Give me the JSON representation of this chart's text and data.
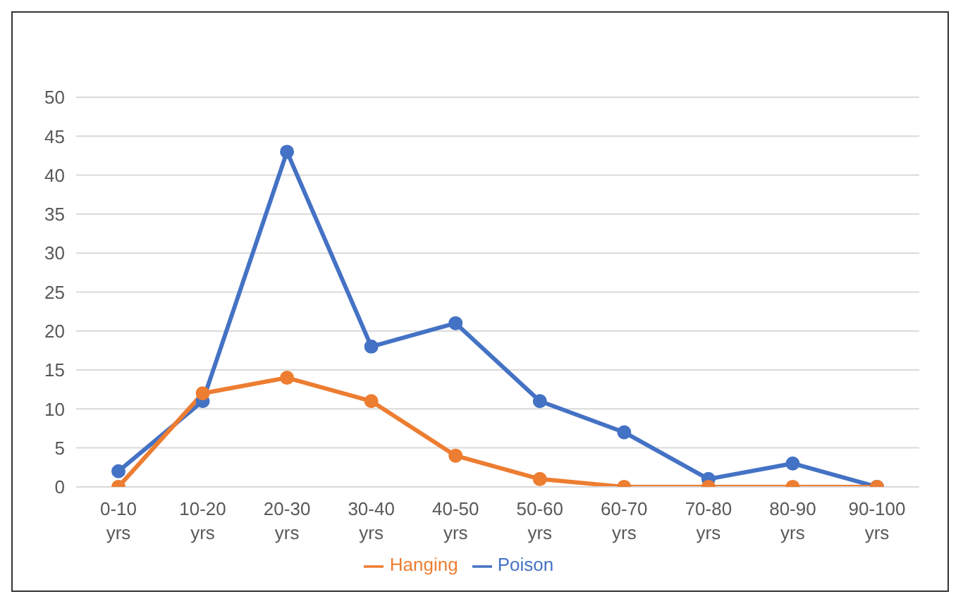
{
  "chart_data": {
    "type": "line",
    "categories": [
      "0-10 yrs",
      "10-20 yrs",
      "20-30 yrs",
      "30-40 yrs",
      "40-50 yrs",
      "50-60 yrs",
      "60-70 yrs",
      "70-80 yrs",
      "80-90 yrs",
      "90-100 yrs"
    ],
    "series": [
      {
        "name": "Poison",
        "color": "#4472c4",
        "values": [
          2,
          11,
          43,
          18,
          21,
          11,
          7,
          1,
          3,
          0
        ]
      },
      {
        "name": "Hanging",
        "color": "#ed7d31",
        "values": [
          0,
          12,
          14,
          11,
          4,
          1,
          0,
          0,
          0,
          0
        ]
      }
    ],
    "ylim": [
      0,
      50
    ],
    "yticks": [
      0,
      5,
      10,
      15,
      20,
      25,
      30,
      35,
      40,
      45,
      50
    ],
    "grid": "y",
    "legend": "bottom",
    "marker": "circle",
    "line_style": "solid"
  }
}
